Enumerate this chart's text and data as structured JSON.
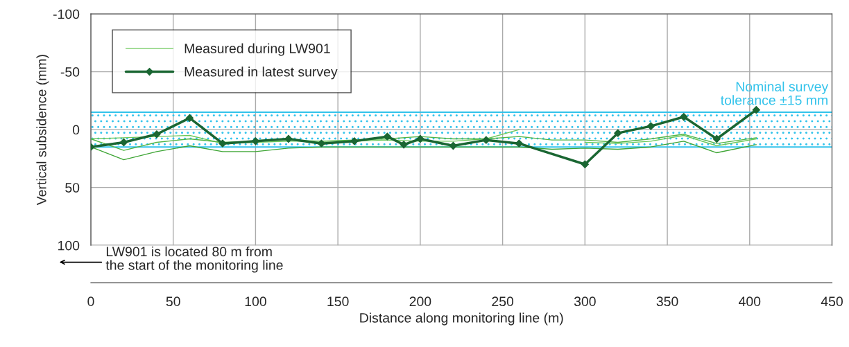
{
  "chart_data": {
    "type": "line",
    "xlabel": "Distance along monitoring line (m)",
    "ylabel": "Vertical subsidence (mm)",
    "xlim": [
      0,
      450
    ],
    "xticks": [
      0,
      50,
      100,
      150,
      200,
      250,
      300,
      350,
      400,
      450
    ],
    "ylim": [
      100,
      -100
    ],
    "yticks": [
      -100,
      -50,
      0,
      50,
      100
    ],
    "grid": true,
    "legend": "top left",
    "series": [
      {
        "name": "Measured during LW901",
        "color": "#6cc85a",
        "x": [
          0,
          20,
          40,
          60,
          80,
          100,
          120,
          140,
          160,
          180,
          200,
          220,
          240,
          260,
          280,
          300,
          320,
          340,
          360,
          380,
          404
        ],
        "values": [
          8,
          7,
          6,
          5,
          12,
          11,
          10,
          10,
          10,
          9,
          10,
          10,
          8,
          0,
          null,
          11,
          12,
          10,
          5,
          14,
          8
        ],
        "marker": "none"
      },
      {
        "color": "#52b545",
        "x": [
          0,
          20,
          40,
          60,
          80,
          100,
          120,
          140,
          160,
          180,
          200,
          220,
          240,
          260,
          280,
          300,
          320,
          340,
          360,
          380,
          404
        ],
        "values": [
          8,
          18,
          11,
          8,
          11,
          10,
          9,
          10,
          9,
          8,
          6,
          8,
          8,
          6,
          9,
          9,
          11,
          8,
          4,
          12,
          7
        ],
        "marker": "none"
      },
      {
        "color": "#3ea535",
        "x": [
          0,
          20,
          40,
          60,
          80,
          100,
          120,
          140,
          160,
          180,
          200,
          220,
          240,
          260,
          280,
          300,
          320,
          340,
          360,
          380,
          404
        ],
        "values": [
          15,
          26,
          19,
          14,
          19,
          19,
          16,
          15,
          15,
          15,
          15,
          15,
          15,
          15,
          17,
          16,
          17,
          15,
          10,
          20,
          13
        ],
        "marker": "none"
      },
      {
        "name": "Measured in latest survey",
        "color": "#1a6632",
        "x": [
          0,
          20,
          40,
          60,
          80,
          100,
          120,
          140,
          160,
          180,
          190,
          200,
          220,
          240,
          260,
          300,
          320,
          340,
          360,
          380,
          404
        ],
        "values": [
          15,
          11,
          4,
          -10,
          12,
          10,
          8,
          12,
          10,
          6,
          13,
          8,
          14,
          9,
          12,
          30,
          3,
          -3,
          -11,
          8,
          -17
        ],
        "marker": "diamond"
      }
    ],
    "ref_lines": [
      {
        "axis": "y",
        "value": -15,
        "color": "#33c3eb"
      },
      {
        "axis": "y",
        "value": 15,
        "color": "#33c3eb"
      }
    ],
    "bands": [
      {
        "axis": "y",
        "from": -15,
        "to": 15,
        "label": "Nominal survey\ntolerance ±15 mm",
        "color": "#33c3eb"
      }
    ],
    "annotations": [
      "LW901 is located 80 m from\nthe start of the monitoring line"
    ]
  }
}
